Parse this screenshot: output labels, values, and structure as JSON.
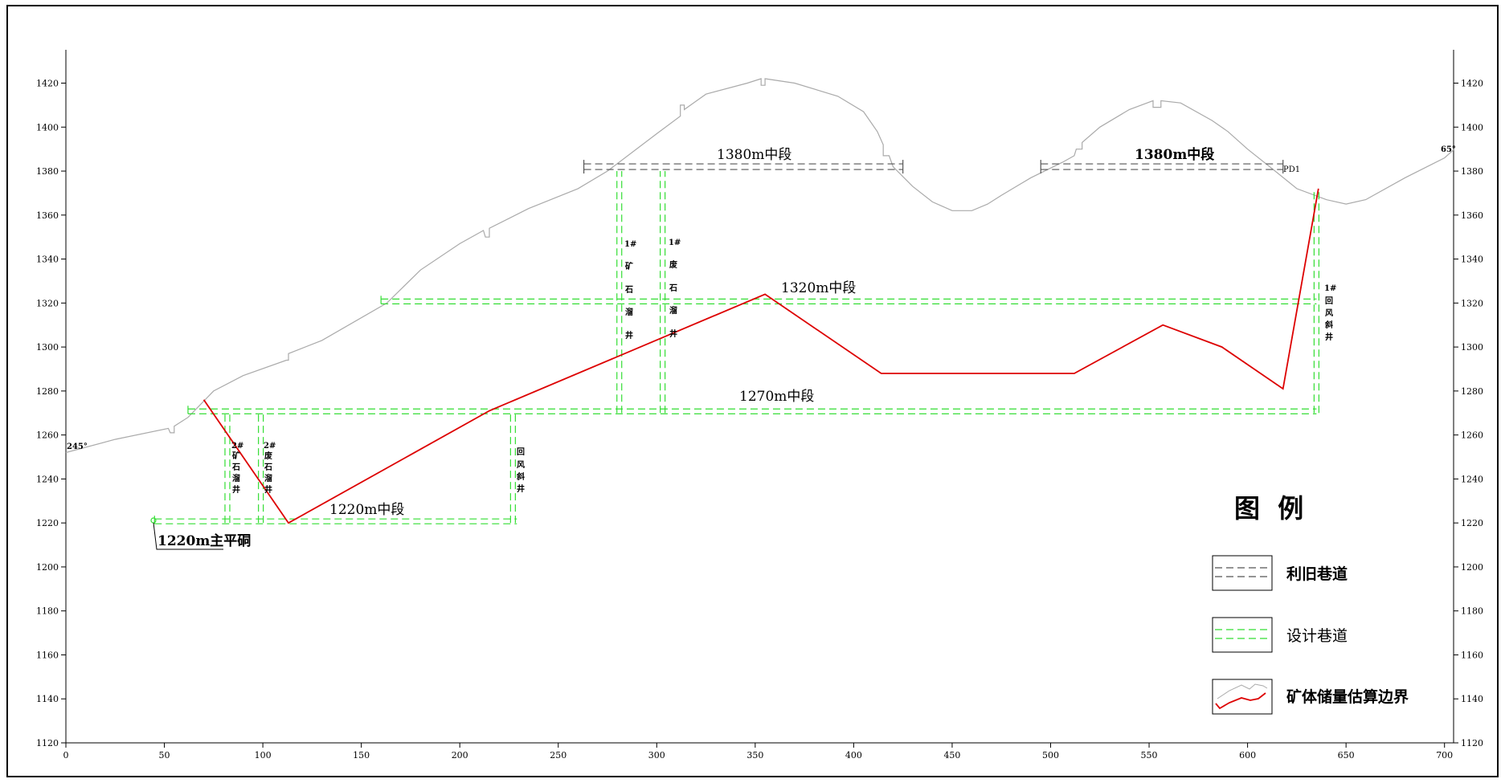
{
  "axes": {
    "x_ticks": [
      "0",
      "50",
      "100",
      "150",
      "200",
      "250",
      "300",
      "350",
      "400",
      "450",
      "500",
      "550",
      "600",
      "650",
      "700"
    ],
    "y_ticks": [
      "1420",
      "1400",
      "1380",
      "1360",
      "1340",
      "1320",
      "1300",
      "1280",
      "1260",
      "1240",
      "1220",
      "1200",
      "1180",
      "1160",
      "1140",
      "1120"
    ],
    "x_range": [
      0,
      705
    ],
    "y_range": [
      1120,
      1430
    ]
  },
  "labels": {
    "azimuth_left": "245°",
    "azimuth_right": "65°",
    "level_1380_a": "1380m中段",
    "level_1380_b": "1380m中段",
    "pd1": "PD1",
    "level_1320": "1320m中段",
    "level_1270": "1270m中段",
    "level_1220": "1220m中段",
    "main_adit": "1220m主平硐"
  },
  "shafts": {
    "ore_pass_1": [
      "1#",
      "矿",
      "石",
      "溜",
      "井"
    ],
    "waste_pass_1": [
      "1#",
      "废",
      "石",
      "溜",
      "井"
    ],
    "return_inclined_1": [
      "1#",
      "回",
      "风",
      "斜",
      "井"
    ],
    "ore_pass_2": [
      "2#",
      "矿",
      "石",
      "溜",
      "井"
    ],
    "waste_pass_2": [
      "2#",
      "废",
      "石",
      "溜",
      "井"
    ],
    "return_inclined": [
      "回",
      "风",
      "斜",
      "井"
    ]
  },
  "legend": {
    "title": "图  例",
    "items": [
      {
        "label": "利旧巷道",
        "color": "#555555"
      },
      {
        "label": "设计巷道",
        "color": "#33dd33"
      },
      {
        "label": "矿体储量估算边界",
        "color": "#dd0000"
      }
    ]
  },
  "colors": {
    "terrain": "#aaaaaa",
    "existing": "#555555",
    "design": "#33dd33",
    "orebody": "#dd0000"
  },
  "terrain_profile": [
    [
      0,
      1252
    ],
    [
      25,
      1258
    ],
    [
      52,
      1263
    ],
    [
      53,
      1261
    ],
    [
      55,
      1261
    ],
    [
      55,
      1264
    ],
    [
      62,
      1268
    ],
    [
      75,
      1280
    ],
    [
      90,
      1287
    ],
    [
      112,
      1294
    ],
    [
      113,
      1294
    ],
    [
      113,
      1297
    ],
    [
      130,
      1303
    ],
    [
      163,
      1320
    ],
    [
      180,
      1335
    ],
    [
      200,
      1347
    ],
    [
      212,
      1353
    ],
    [
      213,
      1350
    ],
    [
      215,
      1350
    ],
    [
      215,
      1354
    ],
    [
      235,
      1363
    ],
    [
      260,
      1372
    ],
    [
      275,
      1380
    ],
    [
      300,
      1397
    ],
    [
      312,
      1405
    ],
    [
      312,
      1410
    ],
    [
      314,
      1410
    ],
    [
      314,
      1408
    ],
    [
      325,
      1415
    ],
    [
      346,
      1420
    ],
    [
      353,
      1422
    ],
    [
      353,
      1419
    ],
    [
      355,
      1419
    ],
    [
      355,
      1422
    ],
    [
      370,
      1420
    ],
    [
      392,
      1414
    ],
    [
      405,
      1407
    ],
    [
      412,
      1398
    ],
    [
      415,
      1392
    ],
    [
      415,
      1387
    ],
    [
      418,
      1387
    ],
    [
      420,
      1382
    ],
    [
      430,
      1373
    ],
    [
      440,
      1366
    ],
    [
      450,
      1362
    ],
    [
      460,
      1362
    ],
    [
      468,
      1365
    ],
    [
      475,
      1369
    ],
    [
      490,
      1377
    ],
    [
      506,
      1384
    ],
    [
      512,
      1387
    ],
    [
      513,
      1390
    ],
    [
      516,
      1390
    ],
    [
      516,
      1393
    ],
    [
      525,
      1400
    ],
    [
      540,
      1408
    ],
    [
      552,
      1412
    ],
    [
      552,
      1409
    ],
    [
      556,
      1409
    ],
    [
      556,
      1412
    ],
    [
      566,
      1411
    ],
    [
      582,
      1403
    ],
    [
      590,
      1398
    ],
    [
      600,
      1390
    ],
    [
      614,
      1380
    ],
    [
      625,
      1372
    ],
    [
      640,
      1367
    ],
    [
      650,
      1365
    ],
    [
      660,
      1367
    ],
    [
      680,
      1377
    ],
    [
      700,
      1386
    ],
    [
      705,
      1390
    ]
  ],
  "orebody_boundary": [
    [
      70,
      1276
    ],
    [
      113,
      1220
    ],
    [
      215,
      1271
    ],
    [
      355,
      1324
    ],
    [
      414,
      1288
    ],
    [
      512,
      1288
    ],
    [
      557,
      1310
    ],
    [
      587,
      1300
    ],
    [
      618,
      1281
    ],
    [
      636,
      1372
    ]
  ],
  "existing_tunnels": [
    [
      263,
      425,
      1380
    ],
    [
      495,
      618,
      1380
    ]
  ],
  "design_tunnels": [
    [
      160,
      635,
      1320
    ],
    [
      62,
      635,
      1270
    ],
    [
      45,
      229,
      1220
    ]
  ],
  "design_shafts": [
    [
      281,
      1270,
      1380
    ],
    [
      303,
      1270,
      1380
    ],
    [
      635,
      1270,
      1372
    ],
    [
      82,
      1220,
      1270
    ],
    [
      99,
      1220,
      1270
    ],
    [
      227,
      1220,
      1270
    ]
  ]
}
